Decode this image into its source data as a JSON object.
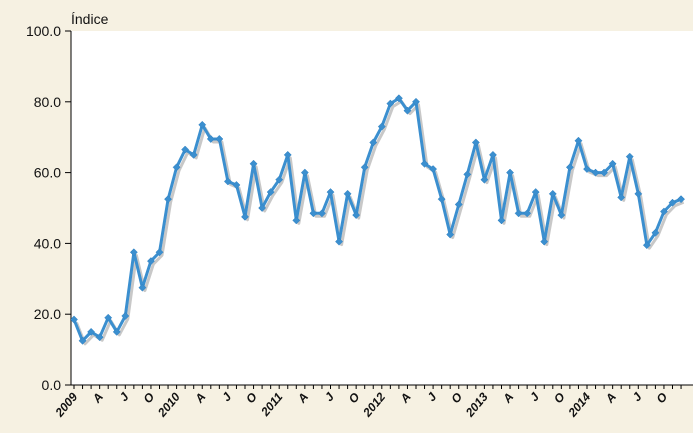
{
  "chart_data": {
    "type": "line",
    "title": "",
    "ylabel": "Índice",
    "xlabel": "",
    "ylim": [
      0,
      100
    ],
    "yticks": [
      "0.0",
      "20.0",
      "40.0",
      "60.0",
      "80.0",
      "100.0"
    ],
    "x_tick_labels": [
      "2009",
      "A",
      "J",
      "O",
      "2010",
      "A",
      "J",
      "O",
      "2011",
      "A",
      "J",
      "O",
      "2012",
      "A",
      "J",
      "O",
      "2013",
      "A",
      "J",
      "O",
      "2014",
      "A",
      "J",
      "O"
    ],
    "grid": false,
    "legend": "none",
    "colors": {
      "line": "#3b8fcf",
      "marker": "#3b8fcf",
      "plot_bg": "#ffffff",
      "page_bg": "#f6f1e2",
      "axis": "#000000"
    },
    "series": [
      {
        "values": [
          18.5,
          12.5,
          15,
          13.5,
          19,
          15,
          19.5,
          37.5,
          27.5,
          35,
          37.5,
          52.5,
          61.5,
          66.5,
          65,
          73.5,
          69.5,
          69.5,
          57.5,
          56.5,
          47.5,
          62.5,
          50,
          54.5,
          58,
          65,
          46.5,
          60,
          48.5,
          48.5,
          54.5,
          40.5,
          54,
          48,
          61.5,
          68.5,
          73,
          79.5,
          81,
          77.5,
          80,
          62.5,
          61,
          52.5,
          42.5,
          51,
          59.5,
          68.5,
          58,
          65,
          46.5,
          60,
          48.5,
          48.5,
          54.5,
          40.5,
          54,
          48,
          61.5,
          69,
          61,
          60,
          60,
          62.5,
          53,
          64.5,
          54,
          39.5,
          43,
          49,
          51.5,
          52.5
        ]
      }
    ]
  }
}
